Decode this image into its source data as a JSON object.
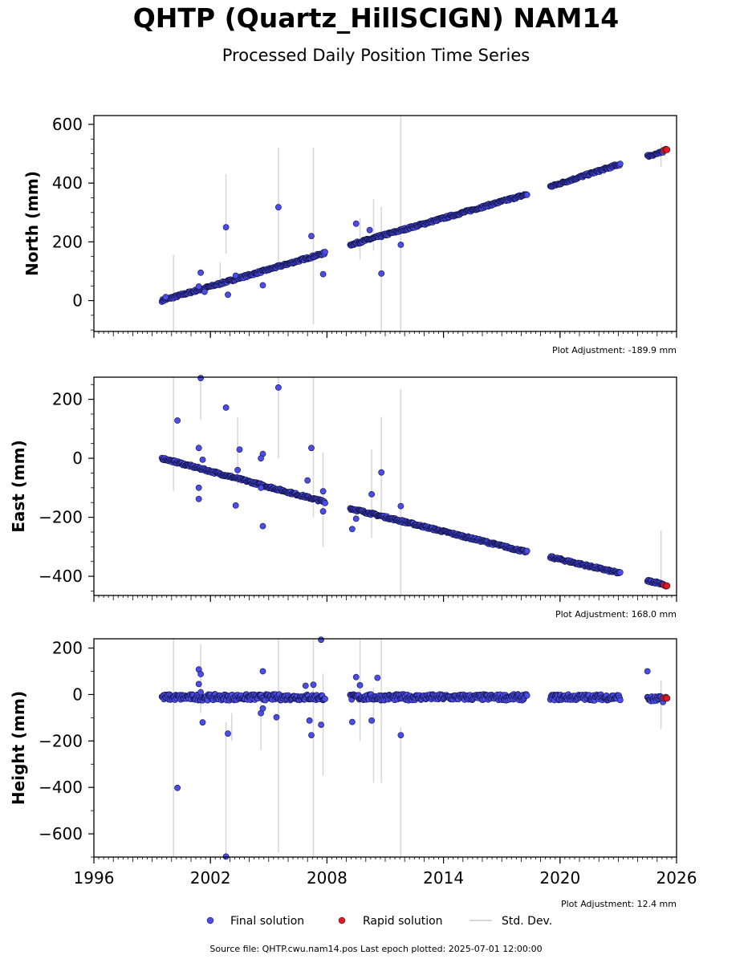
{
  "title": "QHTP (Quartz_HillSCIGN) NAM14",
  "subtitle": "Processed Daily Position Time Series",
  "footer": "Source file: QHTP.cwu.nam14.pos  Last epoch plotted: 2025-07-01 12:00:00",
  "legend": {
    "final": "Final solution",
    "rapid": "Rapid solution",
    "std": "Std. Dev."
  },
  "colors": {
    "final": "#4b4de8",
    "rapid": "#e11b1b",
    "std": "#d6d6d6",
    "edge": "#101040"
  },
  "chart_data": [
    {
      "type": "scatter",
      "ylabel": "North (mm)",
      "adjustment_label": "Plot Adjustment: -189.9 mm",
      "xlim": [
        1996,
        2026
      ],
      "ylim": [
        -105,
        630
      ],
      "yticks": [
        0,
        200,
        400,
        600
      ],
      "yticklabels": [
        "0",
        "200",
        "400",
        "600"
      ],
      "xticks": [
        1996,
        2002,
        2008,
        2014,
        2020,
        2026
      ],
      "xticklabels": [
        "",
        "",
        "",
        "",
        "",
        ""
      ],
      "trend_segments": [
        {
          "x0": 1999.5,
          "y0": 0,
          "x1": 2007.9,
          "y1": 162
        },
        {
          "x0": 2009.2,
          "y0": 190,
          "x1": 2018.3,
          "y1": 362
        },
        {
          "x0": 2019.5,
          "y0": 388,
          "x1": 2023.1,
          "y1": 465
        },
        {
          "x0": 2024.5,
          "y0": 492,
          "x1": 2025.3,
          "y1": 505
        }
      ],
      "rapid_points": [
        [
          2025.35,
          512
        ],
        [
          2025.45,
          515
        ],
        [
          2025.5,
          514
        ]
      ],
      "outliers": [
        [
          2001.5,
          95
        ],
        [
          2002.8,
          250
        ],
        [
          2002.9,
          20
        ],
        [
          2004.7,
          52
        ],
        [
          2005.5,
          318
        ],
        [
          2007.2,
          220
        ],
        [
          2007.8,
          90
        ],
        [
          2009.5,
          262
        ],
        [
          2010.2,
          240
        ],
        [
          2010.8,
          92
        ],
        [
          2011.8,
          190
        ],
        [
          1999.7,
          12
        ],
        [
          2001.4,
          48
        ],
        [
          2001.7,
          30
        ],
        [
          2003.3,
          85
        ]
      ],
      "std_bars": [
        [
          2000.1,
          -105,
          155
        ],
        [
          2002.8,
          160,
          430
        ],
        [
          2005.5,
          120,
          520
        ],
        [
          2007.3,
          -80,
          520
        ],
        [
          2009.7,
          140,
          280
        ],
        [
          2010.4,
          170,
          345
        ],
        [
          2010.8,
          -105,
          320
        ],
        [
          2011.8,
          -105,
          630
        ],
        [
          2025.2,
          455,
          535
        ],
        [
          2002.5,
          40,
          130
        ]
      ]
    },
    {
      "type": "scatter",
      "ylabel": "East (mm)",
      "adjustment_label": "Plot Adjustment: 168.0 mm",
      "xlim": [
        1996,
        2026
      ],
      "ylim": [
        -465,
        275
      ],
      "yticks": [
        -400,
        -200,
        0,
        200
      ],
      "yticklabels": [
        "−400",
        "−200",
        "0",
        "200"
      ],
      "xticks": [
        1996,
        2002,
        2008,
        2014,
        2020,
        2026
      ],
      "xticklabels": [
        "",
        "",
        "",
        "",
        "",
        ""
      ],
      "trend_segments": [
        {
          "x0": 1999.5,
          "y0": 0,
          "x1": 2007.9,
          "y1": -148
        },
        {
          "x0": 2009.2,
          "y0": -170,
          "x1": 2018.3,
          "y1": -318
        },
        {
          "x0": 2019.5,
          "y0": -335,
          "x1": 2023.1,
          "y1": -390
        },
        {
          "x0": 2024.5,
          "y0": -415,
          "x1": 2025.3,
          "y1": -425
        }
      ],
      "rapid_points": [
        [
          2025.35,
          -430
        ],
        [
          2025.45,
          -433
        ],
        [
          2025.5,
          -432
        ]
      ],
      "outliers": [
        [
          2000.3,
          128
        ],
        [
          2001.5,
          272
        ],
        [
          2001.4,
          35
        ],
        [
          2001.6,
          -5
        ],
        [
          2001.4,
          -100
        ],
        [
          2001.4,
          -138
        ],
        [
          2002.8,
          172
        ],
        [
          2003.5,
          30
        ],
        [
          2003.4,
          -40
        ],
        [
          2003.3,
          -160
        ],
        [
          2004.7,
          15
        ],
        [
          2004.6,
          0
        ],
        [
          2004.7,
          -230
        ],
        [
          2005.5,
          240
        ],
        [
          2007.0,
          -75
        ],
        [
          2007.2,
          35
        ],
        [
          2007.8,
          -112
        ],
        [
          2007.8,
          -180
        ],
        [
          2009.3,
          -240
        ],
        [
          2009.5,
          -205
        ],
        [
          2010.3,
          -122
        ],
        [
          2010.8,
          -48
        ],
        [
          2011.8,
          -162
        ],
        [
          2004.6,
          -100
        ]
      ],
      "std_bars": [
        [
          2000.1,
          -110,
          275
        ],
        [
          2001.5,
          130,
          275
        ],
        [
          2003.4,
          -90,
          140
        ],
        [
          2005.5,
          0,
          275
        ],
        [
          2007.3,
          -200,
          275
        ],
        [
          2007.8,
          -300,
          20
        ],
        [
          2010.3,
          -270,
          30
        ],
        [
          2010.8,
          -190,
          140
        ],
        [
          2011.8,
          -465,
          235
        ],
        [
          2025.2,
          -420,
          -245
        ]
      ]
    },
    {
      "type": "scatter",
      "ylabel": "Height (mm)",
      "adjustment_label": "Plot Adjustment: 12.4 mm",
      "xlim": [
        1996,
        2026
      ],
      "ylim": [
        -700,
        240
      ],
      "yticks": [
        -600,
        -400,
        -200,
        0,
        200
      ],
      "yticklabels": [
        "−600",
        "−400",
        "−200",
        "0",
        "200"
      ],
      "xticks": [
        1996,
        2002,
        2008,
        2014,
        2020,
        2026
      ],
      "xticklabels": [
        "1996",
        "2002",
        "2008",
        "2014",
        "2020",
        "2026"
      ],
      "trend_segments": [
        {
          "x0": 1999.5,
          "y0": -12,
          "x1": 2007.9,
          "y1": -12
        },
        {
          "x0": 2009.2,
          "y0": -12,
          "x1": 2018.3,
          "y1": -12
        },
        {
          "x0": 2019.5,
          "y0": -12,
          "x1": 2023.1,
          "y1": -12
        },
        {
          "x0": 2024.5,
          "y0": -20,
          "x1": 2025.3,
          "y1": -20
        }
      ],
      "rapid_points": [
        [
          2025.35,
          -15
        ],
        [
          2025.45,
          -12
        ],
        [
          2025.5,
          -16
        ]
      ],
      "outliers": [
        [
          2000.3,
          -402
        ],
        [
          2001.4,
          108
        ],
        [
          2001.5,
          88
        ],
        [
          2001.6,
          -120
        ],
        [
          2001.4,
          45
        ],
        [
          2002.8,
          -698
        ],
        [
          2002.9,
          -168
        ],
        [
          2004.6,
          -80
        ],
        [
          2004.7,
          100
        ],
        [
          2005.4,
          -98
        ],
        [
          2006.9,
          38
        ],
        [
          2007.1,
          -112
        ],
        [
          2007.2,
          -175
        ],
        [
          2007.3,
          42
        ],
        [
          2007.7,
          236
        ],
        [
          2007.7,
          -130
        ],
        [
          2009.3,
          -118
        ],
        [
          2009.5,
          75
        ],
        [
          2009.7,
          40
        ],
        [
          2010.3,
          -112
        ],
        [
          2010.6,
          72
        ],
        [
          2011.8,
          -175
        ],
        [
          2024.5,
          100
        ],
        [
          2001.5,
          10
        ],
        [
          2004.7,
          -60
        ]
      ],
      "std_bars": [
        [
          2000.1,
          -700,
          240
        ],
        [
          2001.5,
          -80,
          215
        ],
        [
          2002.8,
          -700,
          -120
        ],
        [
          2003.1,
          -200,
          -80
        ],
        [
          2004.6,
          -240,
          -20
        ],
        [
          2005.5,
          -680,
          240
        ],
        [
          2007.3,
          -700,
          240
        ],
        [
          2007.8,
          -350,
          90
        ],
        [
          2009.7,
          -200,
          240
        ],
        [
          2010.4,
          -380,
          30
        ],
        [
          2010.8,
          -380,
          240
        ],
        [
          2011.8,
          -700,
          -140
        ],
        [
          2025.2,
          -150,
          60
        ]
      ]
    }
  ]
}
